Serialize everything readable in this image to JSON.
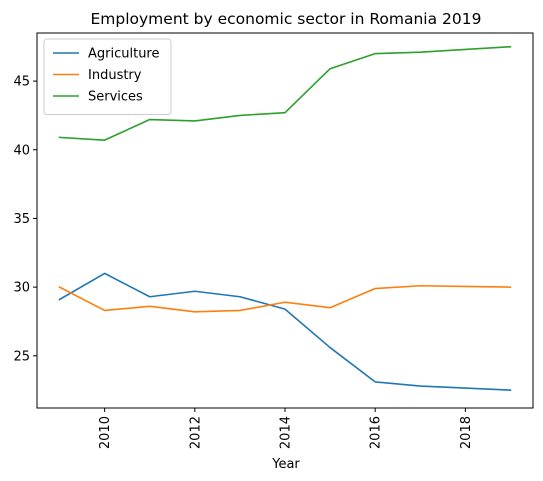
{
  "chart_data": {
    "type": "line",
    "title": "Employment by economic sector in Romania 2019",
    "xlabel": "Year",
    "ylabel": "",
    "x": [
      2009,
      2010,
      2011,
      2012,
      2013,
      2014,
      2015,
      2016,
      2017,
      2018,
      2019
    ],
    "xlim": [
      2008.5,
      2019.5
    ],
    "ylim": [
      21.2,
      48.5
    ],
    "xticks": [
      2010,
      2012,
      2014,
      2016,
      2018
    ],
    "yticks": [
      25,
      30,
      35,
      40,
      45
    ],
    "grid": false,
    "legend_position": "top-left",
    "series": [
      {
        "name": "Agriculture",
        "color": "#1f77b4",
        "values": [
          29.1,
          31.0,
          29.3,
          29.7,
          29.3,
          28.4,
          25.6,
          23.1,
          22.8,
          22.65,
          22.5
        ]
      },
      {
        "name": "Industry",
        "color": "#ff7f0e",
        "values": [
          30.0,
          28.3,
          28.6,
          28.2,
          28.3,
          28.9,
          28.5,
          29.9,
          30.1,
          30.05,
          30.0
        ]
      },
      {
        "name": "Services",
        "color": "#2ca02c",
        "values": [
          40.9,
          40.7,
          42.2,
          42.1,
          42.5,
          42.7,
          45.9,
          47.0,
          47.1,
          47.3,
          47.5
        ]
      }
    ]
  }
}
